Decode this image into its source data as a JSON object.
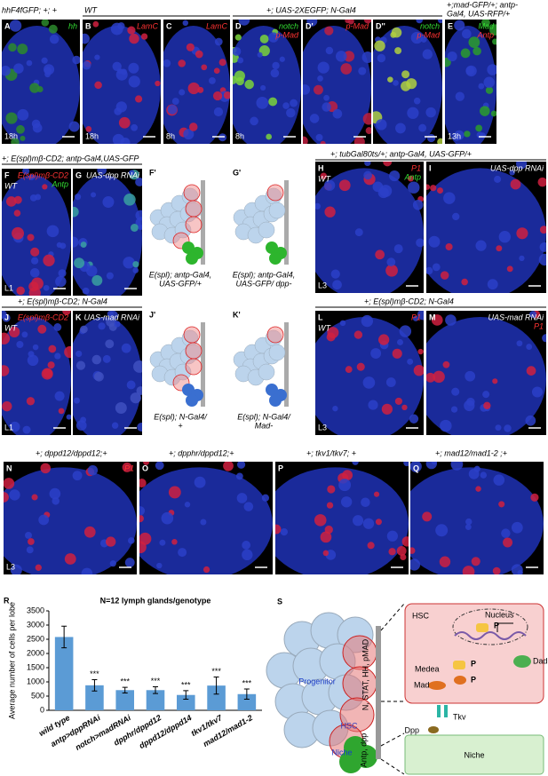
{
  "headers": [
    {
      "lines": [
        "hhF4fGFP; +; +"
      ]
    },
    {
      "lines": [
        "WT"
      ]
    },
    {
      "lines": [
        "+; UAS-2XEGFP; N-Gal4"
      ]
    },
    {
      "lines": [
        "+;mad-GFP/+; antp-",
        "Gal4, UAS-RFP/+"
      ]
    },
    {
      "lines": [
        "+; E(spl)mβ-CD2; antp-Gal4,UAS-GFP"
      ]
    },
    {
      "lines": [
        "+; tubGal80ts/+; antp-Gal4, UAS-GFP/+"
      ]
    },
    {
      "lines": [
        "+; E(spl)mβ-CD2; N-Gal4"
      ]
    },
    {
      "lines": [
        "+; E(spl)mβ-CD2; N-Gal4"
      ]
    },
    {
      "lines": [
        "+; dppd12/dppd12;+"
      ]
    },
    {
      "lines": [
        "+; dpphr/dppd12;+"
      ]
    },
    {
      "lines": [
        "+; tkv1/tkv7; +"
      ]
    },
    {
      "lines": [
        "+; mad12/mad1-2 ;+"
      ]
    }
  ],
  "panels": [
    {
      "letter": "A",
      "channels": [
        {
          "text": "hh",
          "color": "#33dd33"
        }
      ],
      "stage": "18h"
    },
    {
      "letter": "B",
      "channels": [
        {
          "text": "LamC",
          "color": "#ff3333"
        }
      ],
      "stage": "18h"
    },
    {
      "letter": "C",
      "channels": [
        {
          "text": "LamC",
          "color": "#ff3333"
        }
      ],
      "stage": "8h"
    },
    {
      "letter": "D",
      "channels": [
        {
          "text": "notch",
          "color": "#33dd33"
        },
        {
          "text": "p-Mad",
          "color": "#ff3333"
        }
      ],
      "stage": "8h"
    },
    {
      "letter": "D'",
      "channels": [
        {
          "text": "p-Mad",
          "color": "#ff3333"
        }
      ]
    },
    {
      "letter": "D''",
      "channels": [
        {
          "text": "notch",
          "color": "#33dd33"
        },
        {
          "text": "p-Mad",
          "color": "#ff3333"
        }
      ]
    },
    {
      "letter": "E",
      "channels": [
        {
          "text": "Mad",
          "color": "#33dd33"
        },
        {
          "text": "Antp",
          "color": "#ff3333"
        }
      ],
      "stage": "13h"
    },
    {
      "letter": "F",
      "genotype": "WT",
      "channels": [
        {
          "text": "E(spl)mβ-CD2",
          "color": "#ff3333"
        },
        {
          "text": "Antp",
          "color": "#33dd33"
        }
      ],
      "stage": "L1"
    },
    {
      "letter": "G",
      "channels": [
        {
          "text": "UAS-dpp RNAi",
          "color": "#ffffff"
        }
      ]
    },
    {
      "letter": "H",
      "genotype": "WT",
      "channels": [
        {
          "text": "P1",
          "color": "#ff3333"
        },
        {
          "text": "Antp",
          "color": "#33dd33"
        }
      ],
      "stage": "L3"
    },
    {
      "letter": "I",
      "channels": [
        {
          "text": "UAS-dpp RNAi",
          "color": "#ffffff"
        }
      ]
    },
    {
      "letter": "J",
      "genotype": "WT",
      "channels": [
        {
          "text": "E(spl)mβ-CD2",
          "color": "#ff3333"
        }
      ],
      "stage": "L1"
    },
    {
      "letter": "K",
      "channels": [
        {
          "text": "UAS-mad RNAi",
          "color": "#ffffff"
        }
      ]
    },
    {
      "letter": "L",
      "genotype": "WT",
      "channels": [
        {
          "text": "P1",
          "color": "#ff3333"
        }
      ],
      "stage": "L3"
    },
    {
      "letter": "M",
      "channels": [
        {
          "text": "UAS-mad RNAi",
          "color": "#ffffff"
        },
        {
          "text": "P1",
          "color": "#ff3333"
        }
      ]
    },
    {
      "letter": "N",
      "channels": [
        {
          "text": "P1",
          "color": "#ff3333"
        }
      ],
      "stage": "L3"
    },
    {
      "letter": "O",
      "channels": []
    },
    {
      "letter": "P",
      "channels": []
    },
    {
      "letter": "Q",
      "channels": []
    }
  ],
  "schematics": [
    {
      "letter": "F'",
      "caption": [
        "E(spl); antp-Gal4,",
        "UAS-GFP/+"
      ]
    },
    {
      "letter": "G'",
      "caption": [
        "E(spl); antp-Gal4,",
        "UAS-GFP/ dpp-"
      ]
    },
    {
      "letter": "J'",
      "caption": [
        "E(spl); N-Gal4/",
        "+"
      ]
    },
    {
      "letter": "K'",
      "caption": [
        "E(spl); N-Gal4/",
        "Mad-"
      ]
    }
  ],
  "chart_data": {
    "type": "bar",
    "letter": "R",
    "title": "N=12 lymph glands/genotype",
    "y_label": "Average number of cells per lobe",
    "categories": [
      "wild type",
      "antp>dppRNAi",
      "notch>madRNAi",
      "dpphr/dppd12",
      "dppd12/dppd14",
      "tkv1/tkv7",
      "mad12/mad1-2"
    ],
    "values": [
      2580,
      880,
      710,
      710,
      540,
      870,
      570
    ],
    "errors": [
      380,
      200,
      100,
      120,
      150,
      300,
      180
    ],
    "significance": [
      null,
      "***",
      "***",
      "***",
      "***",
      "***",
      "***"
    ],
    "color": "#5b9bd5",
    "ylim": [
      0,
      3500
    ],
    "yticks": [
      0,
      500,
      1000,
      1500,
      2000,
      2500,
      3000,
      3500
    ]
  },
  "diagram": {
    "letter": "S",
    "progenitor": "Progenitor",
    "hsc": "HSC",
    "niche": "Niche",
    "signals": "N, STAT, HH, pMAD",
    "niche_signals": "Antp, dpp",
    "inset_title": "HSC",
    "nucleus": "Nucleus",
    "p": "P",
    "medea": "Medea",
    "mad": "Mad",
    "dad": "Dad",
    "tkv": "Tkv",
    "dpp": "Dpp",
    "niche_box": "Niche"
  }
}
